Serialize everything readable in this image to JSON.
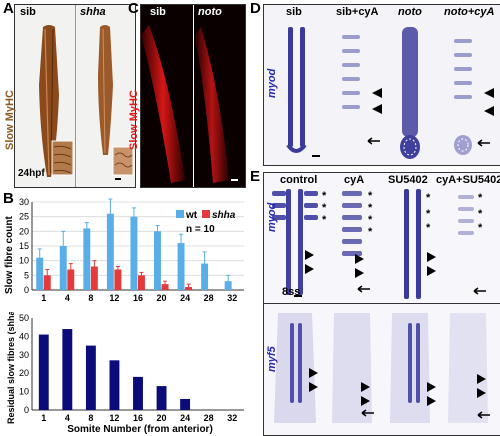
{
  "panels": {
    "A": {
      "letter": "A",
      "sib": "sib",
      "mut": "shha",
      "stain_word1": "Slow ",
      "stain_word2": "MyHC",
      "stage": "24hpf"
    },
    "B": {
      "letter": "B"
    },
    "C": {
      "letter": "C",
      "sib": "sib",
      "mut": "noto",
      "stain": "Slow MyHC"
    },
    "D": {
      "letter": "D",
      "cols": [
        "sib",
        "sib+cyA",
        "noto",
        "noto+cyA"
      ],
      "gene": "myod"
    },
    "E": {
      "letter": "E",
      "cols": [
        "control",
        "cyA",
        "SU5402",
        "cyA+SU5402"
      ],
      "gene1": "myod",
      "gene2": "myf5",
      "stage": "8ss"
    }
  },
  "chart_data": [
    {
      "type": "bar",
      "ylabel": "Slow fibre count",
      "categories": [
        "1",
        "4",
        "8",
        "12",
        "16",
        "20",
        "24",
        "28",
        "32"
      ],
      "ylim": [
        0,
        30
      ],
      "yticks": [
        0,
        5,
        10,
        15,
        20,
        25,
        30
      ],
      "legend": {
        "entries": [
          "wt",
          "shha"
        ],
        "position": "top-right"
      },
      "annotation": "n = 10",
      "series": [
        {
          "name": "wt",
          "color": "#5aaee8",
          "values": [
            11,
            15,
            21,
            26,
            25,
            20,
            16,
            9,
            3
          ],
          "errors": [
            3,
            5,
            2,
            5,
            3,
            2,
            3,
            4,
            2
          ]
        },
        {
          "name": "shha",
          "color": "#e53a3a",
          "values": [
            5,
            7,
            8,
            7,
            5,
            2,
            1,
            0,
            0
          ],
          "errors": [
            2,
            2,
            2,
            1,
            1,
            1,
            1,
            0,
            0
          ]
        }
      ]
    },
    {
      "type": "bar",
      "ylabel": "Residual slow fibres (shha/wt %)",
      "xlabel": "Somite Number (from anterior)",
      "categories": [
        "1",
        "4",
        "8",
        "12",
        "16",
        "20",
        "24",
        "28",
        "32"
      ],
      "ylim": [
        0,
        50
      ],
      "yticks": [
        0,
        10,
        20,
        30,
        40,
        50
      ],
      "values": [
        41,
        44,
        35,
        27,
        18,
        13,
        6,
        0,
        0
      ],
      "color": "#0b0b7a"
    }
  ]
}
